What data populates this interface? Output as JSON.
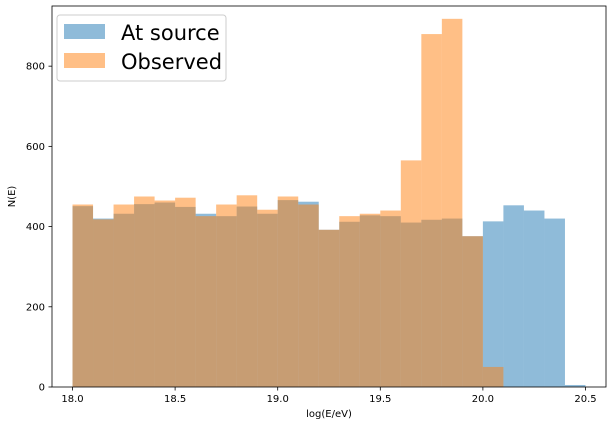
{
  "chart_data": {
    "type": "histogram",
    "xlabel": "log(E/eV)",
    "ylabel": "N(E)",
    "xlim": [
      17.9,
      20.6
    ],
    "ylim": [
      0,
      950
    ],
    "xticks": [
      "18.0",
      "18.5",
      "19.0",
      "19.5",
      "20.0",
      "20.5"
    ],
    "yticks": [
      "0",
      "200",
      "400",
      "600",
      "800"
    ],
    "bin_edges": [
      18.0,
      18.1,
      18.2,
      18.3,
      18.4,
      18.5,
      18.6,
      18.7,
      18.8,
      18.9,
      19.0,
      19.1,
      19.2,
      19.3,
      19.4,
      19.5,
      19.6,
      19.7,
      19.8,
      19.9,
      20.0,
      20.1,
      20.2,
      20.3,
      20.4,
      20.5
    ],
    "legend_position": "upper left",
    "series": [
      {
        "name": "At source",
        "color": "#1f77b4",
        "alpha": 0.5,
        "values": [
          451,
          420,
          432,
          456,
          460,
          449,
          432,
          426,
          450,
          432,
          466,
          462,
          392,
          412,
          428,
          426,
          410,
          417,
          420,
          376,
          413,
          453,
          440,
          420,
          5
        ]
      },
      {
        "name": "Observed",
        "color": "#ff7f0e",
        "alpha": 0.5,
        "values": [
          455,
          418,
          455,
          475,
          465,
          472,
          426,
          455,
          478,
          442,
          475,
          455,
          392,
          426,
          432,
          440,
          565,
          880,
          918,
          376,
          50,
          0,
          0,
          0,
          0
        ]
      }
    ]
  }
}
